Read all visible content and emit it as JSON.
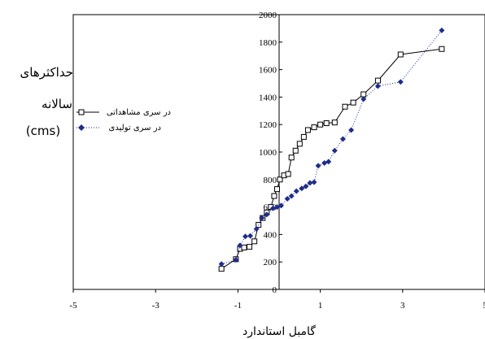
{
  "chart_data": {
    "type": "scatter",
    "xlabel": "گامبل استاندارد",
    "ylabel_lines": [
      "حداکثرهای",
      "سالانه",
      "(cms)"
    ],
    "xlim": [
      -5,
      5
    ],
    "ylim": [
      0,
      2000
    ],
    "xticks": [
      -5,
      -3,
      -1,
      1,
      3,
      5
    ],
    "yticks": [
      0,
      200,
      400,
      600,
      800,
      1000,
      1200,
      1400,
      1600,
      1800,
      2000
    ],
    "grid": false,
    "legend_position": "left",
    "series": [
      {
        "name": "در سری مشاهداتی",
        "marker": "open-square",
        "line": "solid",
        "color": "#000000",
        "points": [
          [
            -1.4,
            150
          ],
          [
            -1.05,
            220
          ],
          [
            -0.95,
            295
          ],
          [
            -0.85,
            305
          ],
          [
            -0.72,
            310
          ],
          [
            -0.6,
            350
          ],
          [
            -0.5,
            470
          ],
          [
            -0.4,
            520
          ],
          [
            -0.3,
            560
          ],
          [
            -0.2,
            600
          ],
          [
            -0.12,
            680
          ],
          [
            -0.05,
            730
          ],
          [
            0.02,
            800
          ],
          [
            0.12,
            830
          ],
          [
            0.22,
            840
          ],
          [
            0.3,
            960
          ],
          [
            0.4,
            1010
          ],
          [
            0.5,
            1060
          ],
          [
            0.6,
            1110
          ],
          [
            0.7,
            1160
          ],
          [
            0.85,
            1180
          ],
          [
            1.0,
            1200
          ],
          [
            1.15,
            1210
          ],
          [
            1.35,
            1215
          ],
          [
            1.6,
            1330
          ],
          [
            1.8,
            1360
          ],
          [
            2.05,
            1420
          ],
          [
            2.4,
            1520
          ],
          [
            2.95,
            1710
          ],
          [
            3.95,
            1750
          ]
        ]
      },
      {
        "name": "در سری تولیدی",
        "marker": "filled-diamond",
        "line": "dotted",
        "color": "#1f2d8a",
        "points": [
          [
            -1.4,
            185
          ],
          [
            -1.05,
            215
          ],
          [
            -0.95,
            320
          ],
          [
            -0.82,
            385
          ],
          [
            -0.7,
            390
          ],
          [
            -0.55,
            440
          ],
          [
            -0.42,
            520
          ],
          [
            -0.3,
            545
          ],
          [
            -0.15,
            590
          ],
          [
            -0.05,
            600
          ],
          [
            0.05,
            610
          ],
          [
            0.2,
            660
          ],
          [
            0.3,
            680
          ],
          [
            0.42,
            715
          ],
          [
            0.55,
            735
          ],
          [
            0.65,
            750
          ],
          [
            0.75,
            775
          ],
          [
            0.85,
            780
          ],
          [
            0.95,
            900
          ],
          [
            1.1,
            920
          ],
          [
            1.2,
            930
          ],
          [
            1.35,
            1010
          ],
          [
            1.55,
            1095
          ],
          [
            1.75,
            1160
          ],
          [
            2.05,
            1385
          ],
          [
            2.4,
            1480
          ],
          [
            2.95,
            1510
          ],
          [
            3.95,
            1885
          ]
        ]
      }
    ]
  }
}
